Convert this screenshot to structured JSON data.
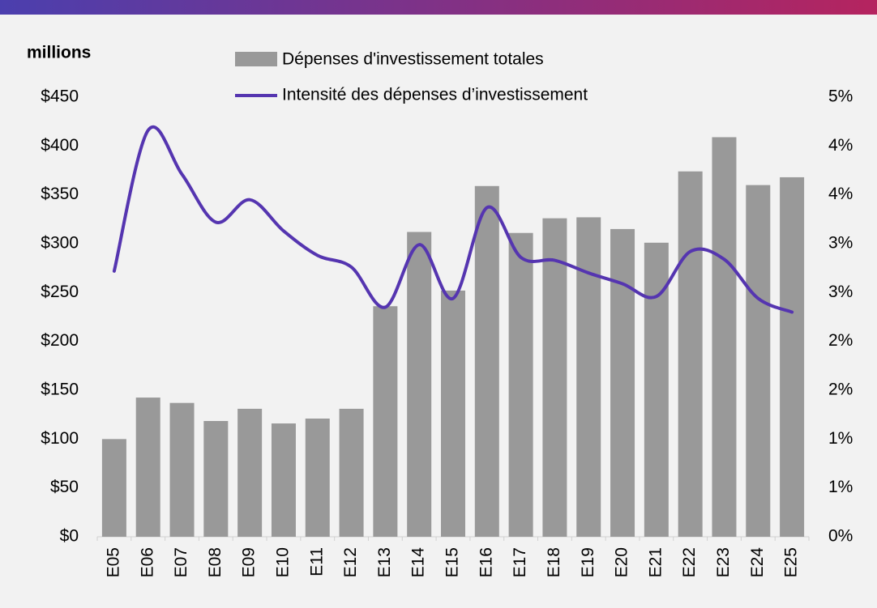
{
  "chart_data": {
    "type": "bar_line",
    "ylabel": "millions",
    "categories": [
      "E05",
      "E06",
      "E07",
      "E08",
      "E09",
      "E10",
      "E11",
      "E12",
      "E13",
      "E14",
      "E15",
      "E16",
      "E17",
      "E18",
      "E19",
      "E20",
      "E21",
      "E22",
      "E23",
      "E24",
      "E25"
    ],
    "series": [
      {
        "name": "Dépenses d'investissement totales",
        "type": "bar",
        "color": "#999999",
        "values": [
          100,
          142.5,
          137,
          118.5,
          131,
          116,
          121,
          131,
          236,
          312,
          252,
          359,
          311,
          326,
          327,
          315,
          301,
          374,
          409,
          360,
          368
        ]
      },
      {
        "name": "Intensité des dépenses d’investissement",
        "type": "line",
        "color": "#5535b0",
        "axis": "y2",
        "values": [
          2.72,
          4.16,
          3.71,
          3.22,
          3.45,
          3.13,
          2.88,
          2.76,
          2.35,
          2.99,
          2.44,
          3.37,
          2.86,
          2.83,
          2.7,
          2.59,
          2.46,
          2.92,
          2.84,
          2.44,
          2.3
        ]
      }
    ],
    "ylim": [
      0,
      450
    ],
    "yticks": [
      {
        "value": 0,
        "label": "$0"
      },
      {
        "value": 50,
        "label": "$50"
      },
      {
        "value": 100,
        "label": "$100"
      },
      {
        "value": 150,
        "label": "$150"
      },
      {
        "value": 200,
        "label": "$200"
      },
      {
        "value": 250,
        "label": "$250"
      },
      {
        "value": 300,
        "label": "$300"
      },
      {
        "value": 350,
        "label": "$350"
      },
      {
        "value": 400,
        "label": "$400"
      },
      {
        "value": 450,
        "label": "$450"
      }
    ],
    "y2lim": [
      0,
      4.5
    ],
    "y2ticks": [
      {
        "value": 0,
        "label": "0%"
      },
      {
        "value": 0.5,
        "label": "1%"
      },
      {
        "value": 1,
        "label": "1%"
      },
      {
        "value": 1.5,
        "label": "2%"
      },
      {
        "value": 2,
        "label": "2%"
      },
      {
        "value": 2.5,
        "label": "3%"
      },
      {
        "value": 3,
        "label": "3%"
      },
      {
        "value": 3.5,
        "label": "4%"
      },
      {
        "value": 4,
        "label": "4%"
      },
      {
        "value": 4.5,
        "label": "5%"
      }
    ],
    "y2color": "#5b3fb0"
  }
}
